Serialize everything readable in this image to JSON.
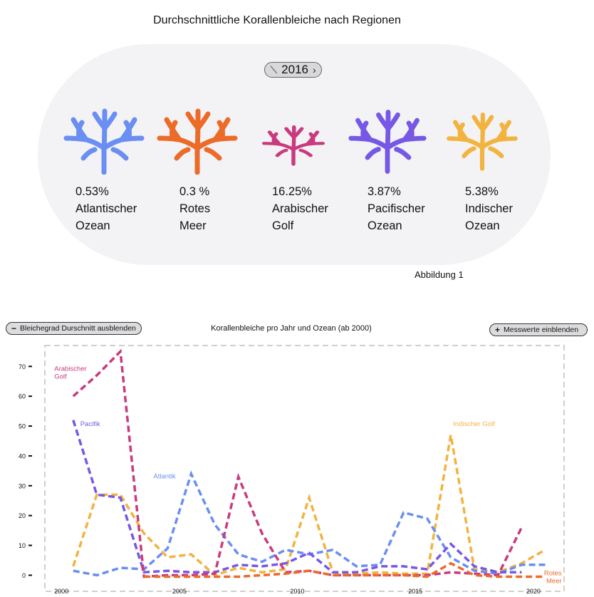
{
  "header": {
    "title": "Durchschnittliche Korallenbleiche nach Regionen"
  },
  "year_selector": {
    "value": "2016",
    "prev_icon": "chevron-left-icon",
    "next_icon": "chevron-right-icon"
  },
  "regions": [
    {
      "value": "0.53%",
      "line1": "Atlantischer",
      "line2": "Ozean",
      "color": "#6a8ef2",
      "icon": "coral-icon"
    },
    {
      "value": "0.3 %",
      "line1": "Rotes",
      "line2": "Meer",
      "color": "#ec6b28",
      "icon": "coral-icon"
    },
    {
      "value": "16.25%",
      "line1": "Arabischer",
      "line2": "Golf",
      "color": "#c93a7e",
      "icon": "coral-icon"
    },
    {
      "value": "3.87%",
      "line1": "Pacifischer",
      "line2": "Ozean",
      "color": "#7657e6",
      "icon": "coral-icon"
    },
    {
      "value": "5.38%",
      "line1": "Indischer",
      "line2": "Ozean",
      "color": "#f2b33f",
      "icon": "coral-icon"
    }
  ],
  "figure_caption": "Abbildung 1",
  "controls": {
    "hide_avg_label": "Bleichegrad Durschnitt ausblenden",
    "hide_avg_symbol": "−",
    "show_values_label": "Messwerte einblenden",
    "show_values_symbol": "+"
  },
  "chart_data": {
    "type": "line",
    "title": "Korallenbleiche pro Jahr und Ozean (ab 2000)",
    "xlim": [
      1999.3,
      2021.3
    ],
    "ylim": [
      -3,
      77
    ],
    "x_ticks": [
      2000,
      2005,
      2010,
      2015,
      2020
    ],
    "y_ticks": [
      0,
      10,
      20,
      30,
      40,
      50,
      60,
      70
    ],
    "grid": false,
    "series": [
      {
        "name": "Indischer Golf",
        "color": "#f2b33f",
        "label_x": 2016.6,
        "label_y": 50,
        "points": [
          [
            2000.5,
            3
          ],
          [
            2001.5,
            27
          ],
          [
            2002.5,
            27
          ],
          [
            2003.5,
            14
          ],
          [
            2004.5,
            6
          ],
          [
            2005.5,
            7
          ],
          [
            2006.5,
            0
          ],
          [
            2007.5,
            2.5
          ],
          [
            2008.5,
            1
          ],
          [
            2009.5,
            2
          ],
          [
            2010.5,
            26
          ],
          [
            2011.5,
            1
          ],
          [
            2012.5,
            0.5
          ],
          [
            2013.5,
            1
          ],
          [
            2014.5,
            0.5
          ],
          [
            2015.5,
            0.5
          ],
          [
            2016.5,
            47
          ],
          [
            2017.5,
            2
          ],
          [
            2018.5,
            1
          ],
          [
            2019.5,
            4
          ],
          [
            2020.5,
            8.5
          ]
        ]
      },
      {
        "name": "Atlantik",
        "color": "#6a8ef2",
        "label_x": 2003.9,
        "label_y": 32.5,
        "points": [
          [
            2000.5,
            1.5
          ],
          [
            2001.5,
            0
          ],
          [
            2002.5,
            2.5
          ],
          [
            2003.5,
            2
          ],
          [
            2004.5,
            9
          ],
          [
            2005.5,
            34
          ],
          [
            2006.5,
            17
          ],
          [
            2007.5,
            7
          ],
          [
            2008.5,
            4.5
          ],
          [
            2009.5,
            8.5
          ],
          [
            2010.5,
            7
          ],
          [
            2011.5,
            8.5
          ],
          [
            2012.5,
            3
          ],
          [
            2013.5,
            3.5
          ],
          [
            2014.5,
            21
          ],
          [
            2015.5,
            19
          ],
          [
            2016.5,
            6
          ],
          [
            2017.5,
            1.5
          ],
          [
            2018.5,
            0.5
          ],
          [
            2019.5,
            3.5
          ],
          [
            2020.5,
            3.5
          ]
        ]
      },
      {
        "name": "Pacifik",
        "color": "#7657e6",
        "label_x": 2000.8,
        "label_y": 50,
        "points": [
          [
            2000.5,
            52
          ],
          [
            2001.5,
            27
          ],
          [
            2002.5,
            26
          ],
          [
            2003.5,
            1
          ],
          [
            2004.5,
            1.5
          ],
          [
            2005.5,
            1
          ],
          [
            2006.5,
            1
          ],
          [
            2007.5,
            3.5
          ],
          [
            2008.5,
            3
          ],
          [
            2009.5,
            4
          ],
          [
            2010.5,
            7.5
          ],
          [
            2011.5,
            1
          ],
          [
            2012.5,
            1
          ],
          [
            2013.5,
            3
          ],
          [
            2014.5,
            3
          ],
          [
            2015.5,
            2
          ],
          [
            2016.5,
            10.5
          ],
          [
            2017.5,
            3
          ],
          [
            2018.5,
            1
          ],
          [
            2019.5,
            1
          ]
        ]
      },
      {
        "name": "Arabischer Golf",
        "color": "#c93a7e",
        "label_x": 1999.7,
        "label_y": 68.5,
        "points": [
          [
            2000.5,
            60
          ],
          [
            2001.5,
            67
          ],
          [
            2002.5,
            75
          ],
          [
            2003.5,
            -0.5
          ],
          [
            2004.5,
            0
          ],
          [
            2005.5,
            0
          ],
          [
            2006.5,
            0.5
          ],
          [
            2007.5,
            33
          ],
          [
            2008.5,
            14
          ],
          [
            2009.5,
            1
          ],
          [
            2010.5,
            1.5
          ],
          [
            2011.5,
            0
          ],
          [
            2012.5,
            0
          ],
          [
            2013.5,
            0
          ],
          [
            2014.5,
            0
          ],
          [
            2015.5,
            0
          ],
          [
            2016.5,
            1
          ],
          [
            2017.5,
            0.5
          ],
          [
            2018.5,
            0
          ],
          [
            2019.5,
            16
          ]
        ]
      },
      {
        "name": "Rotes Meer",
        "color": "#ec6b28",
        "label_x": 2021.2,
        "label_y": 0,
        "points": [
          [
            2003.5,
            -0.5
          ],
          [
            2004.5,
            -0.5
          ],
          [
            2005.5,
            -0.5
          ],
          [
            2006.5,
            -0.5
          ],
          [
            2007.5,
            -0.5
          ],
          [
            2008.5,
            0
          ],
          [
            2009.5,
            0.5
          ],
          [
            2010.5,
            1.5
          ],
          [
            2011.5,
            0
          ],
          [
            2012.5,
            0
          ],
          [
            2013.5,
            0
          ],
          [
            2014.5,
            0
          ],
          [
            2015.5,
            -0.5
          ],
          [
            2016.5,
            4
          ],
          [
            2017.5,
            0
          ],
          [
            2018.5,
            -0.5
          ],
          [
            2019.5,
            -0.5
          ],
          [
            2020.5,
            -0.5
          ]
        ]
      }
    ]
  }
}
